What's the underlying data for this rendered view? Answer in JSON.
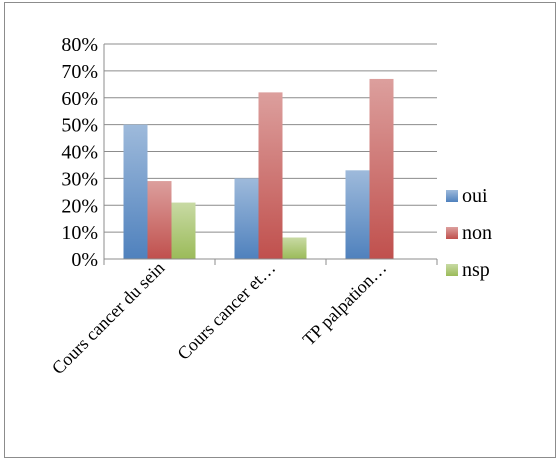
{
  "chart_data": {
    "type": "bar",
    "categories": [
      "Cours cancer du sein",
      "Cours cancer et…",
      "TP palpation…"
    ],
    "series": [
      {
        "name": "oui",
        "values": [
          50,
          30,
          33
        ],
        "color": "#4f81bd"
      },
      {
        "name": "non",
        "values": [
          29,
          62,
          67
        ],
        "color": "#c0504d"
      },
      {
        "name": "nsp",
        "values": [
          21,
          8,
          0
        ],
        "color": "#9bbb59"
      }
    ],
    "yticks": [
      "0%",
      "10%",
      "20%",
      "30%",
      "40%",
      "50%",
      "60%",
      "70%",
      "80%"
    ],
    "ylim": [
      0,
      80
    ],
    "ylabel": "",
    "xlabel": "",
    "grid": true,
    "legend_position": "right"
  }
}
